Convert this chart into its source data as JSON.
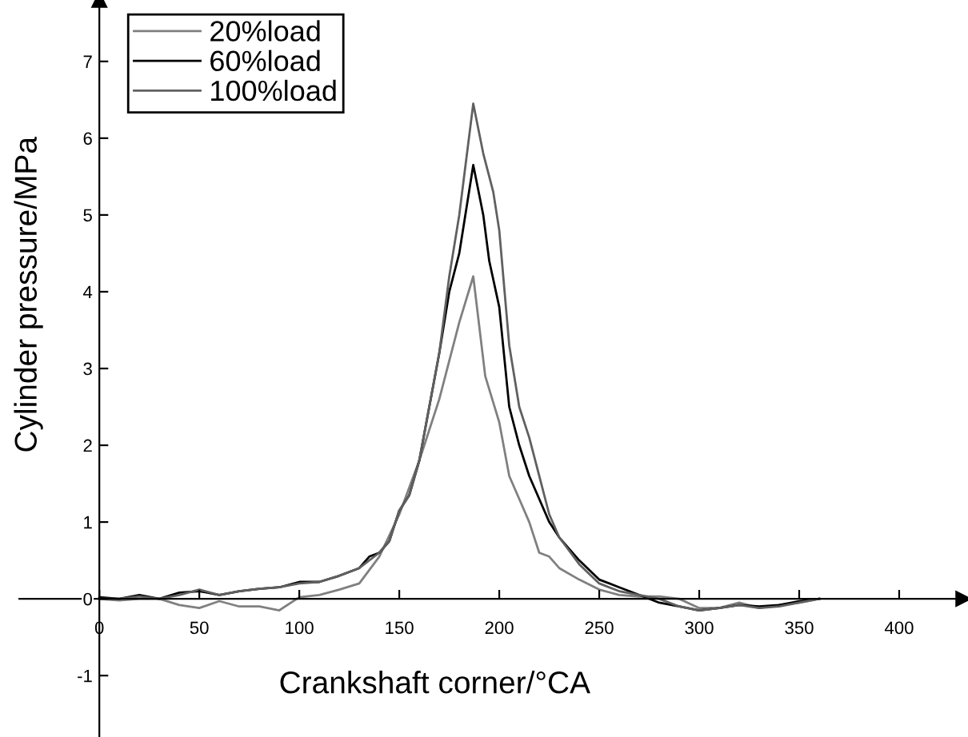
{
  "chart_data": {
    "type": "line",
    "xlabel": "Crankshaft corner/°CA",
    "ylabel": "Cylinder pressure/MPa",
    "xlim": [
      -40,
      432
    ],
    "ylim": [
      -1.8,
      7.8
    ],
    "xticks": [
      0,
      50,
      100,
      150,
      200,
      250,
      300,
      350,
      400
    ],
    "yticks": [
      -1,
      0,
      1,
      2,
      3,
      4,
      5,
      6,
      7
    ],
    "grid": false,
    "legend": "top left",
    "marker": "none",
    "line_style": "solid",
    "series": [
      {
        "name": "20%load",
        "color": "#808080",
        "x": [
          0,
          10,
          20,
          30,
          40,
          50,
          60,
          70,
          80,
          90,
          100,
          110,
          120,
          130,
          140,
          150,
          160,
          170,
          175,
          180,
          187,
          193,
          200,
          205,
          210,
          215,
          220,
          225,
          230,
          240,
          250,
          260,
          270,
          280,
          290,
          300,
          310,
          320,
          330,
          340,
          350,
          360
        ],
        "values": [
          0.0,
          -0.02,
          0.0,
          0.0,
          -0.08,
          -0.12,
          -0.03,
          -0.1,
          -0.1,
          -0.15,
          0.02,
          0.05,
          0.12,
          0.2,
          0.55,
          1.1,
          1.8,
          2.6,
          3.1,
          3.6,
          4.2,
          2.9,
          2.3,
          1.6,
          1.3,
          1.0,
          0.6,
          0.55,
          0.4,
          0.25,
          0.12,
          0.05,
          0.03,
          0.03,
          0.0,
          -0.12,
          -0.12,
          -0.05,
          -0.12,
          -0.08,
          -0.05,
          0.0
        ]
      },
      {
        "name": "60%load",
        "color": "#000000",
        "x": [
          0,
          10,
          20,
          30,
          40,
          50,
          60,
          70,
          80,
          90,
          100,
          110,
          120,
          130,
          135,
          140,
          145,
          150,
          155,
          160,
          165,
          170,
          175,
          180,
          187,
          192,
          195,
          200,
          205,
          210,
          215,
          220,
          225,
          230,
          240,
          250,
          260,
          270,
          280,
          290,
          300,
          310,
          320,
          330,
          340,
          350,
          360
        ],
        "values": [
          0.02,
          0.0,
          0.05,
          0.0,
          0.08,
          0.1,
          0.05,
          0.1,
          0.13,
          0.15,
          0.22,
          0.22,
          0.3,
          0.4,
          0.55,
          0.6,
          0.75,
          1.15,
          1.35,
          1.8,
          2.5,
          3.2,
          4.0,
          4.5,
          5.65,
          5.0,
          4.4,
          3.8,
          2.5,
          2.0,
          1.6,
          1.3,
          1.0,
          0.8,
          0.5,
          0.25,
          0.15,
          0.05,
          -0.05,
          -0.1,
          -0.15,
          -0.12,
          -0.08,
          -0.1,
          -0.08,
          -0.03,
          0.0
        ]
      },
      {
        "name": "100%load",
        "color": "#606060",
        "x": [
          0,
          10,
          20,
          30,
          40,
          50,
          60,
          70,
          80,
          90,
          100,
          110,
          120,
          130,
          140,
          145,
          150,
          155,
          160,
          165,
          170,
          175,
          180,
          187,
          192,
          197,
          200,
          205,
          210,
          215,
          220,
          225,
          230,
          240,
          250,
          260,
          270,
          280,
          290,
          300,
          310,
          320,
          330,
          340,
          350,
          360
        ],
        "values": [
          0.0,
          0.0,
          0.03,
          0.0,
          0.05,
          0.12,
          0.05,
          0.1,
          0.13,
          0.15,
          0.2,
          0.22,
          0.3,
          0.4,
          0.6,
          0.75,
          1.15,
          1.35,
          1.8,
          2.5,
          3.2,
          4.2,
          5.0,
          6.45,
          5.8,
          5.3,
          4.8,
          3.3,
          2.5,
          2.1,
          1.6,
          1.1,
          0.8,
          0.45,
          0.2,
          0.1,
          0.05,
          0.0,
          -0.1,
          -0.15,
          -0.12,
          -0.08,
          -0.12,
          -0.1,
          -0.05,
          0.0
        ]
      }
    ]
  }
}
